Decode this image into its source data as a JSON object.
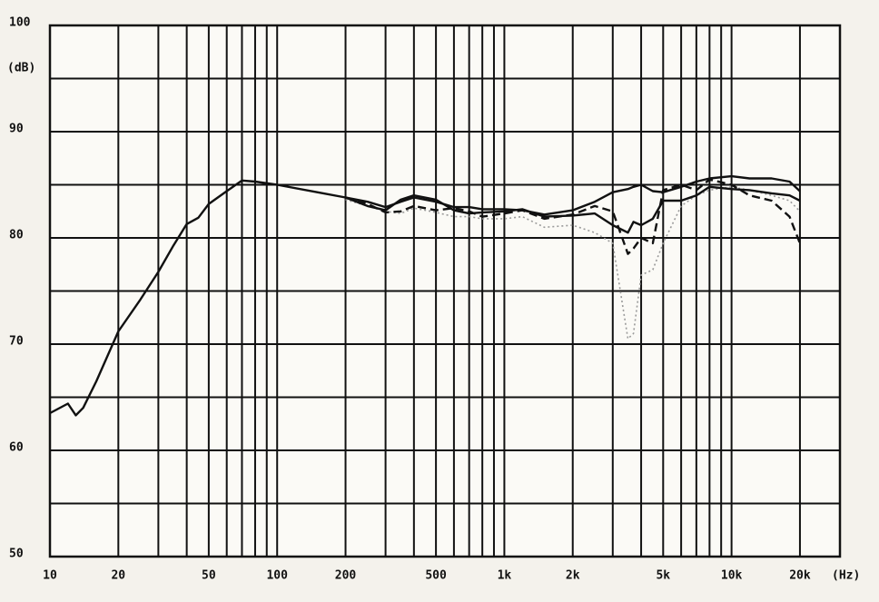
{
  "chart_data": {
    "type": "line",
    "ylabel": "(dB)",
    "xlabel": "(Hz)",
    "xscale": "log",
    "grid": true,
    "xlim": [
      10,
      30000
    ],
    "ylim": [
      50,
      100
    ],
    "xticks": [
      10,
      20,
      50,
      100,
      200,
      500,
      {
        "value": 1000,
        "label": "1k"
      },
      {
        "value": 2000,
        "label": "2k"
      },
      {
        "value": 5000,
        "label": "5k"
      },
      {
        "value": 10000,
        "label": "10k"
      },
      {
        "value": 20000,
        "label": "20k"
      }
    ],
    "x_minor_ticks": [
      30,
      40,
      60,
      70,
      80,
      90,
      300,
      400,
      600,
      700,
      800,
      900,
      3000,
      4000,
      6000,
      7000,
      8000,
      9000
    ],
    "yticks": [
      50,
      60,
      70,
      80,
      90,
      100
    ],
    "y_minor_ticks": [
      55,
      65,
      75,
      85,
      95
    ],
    "x": [
      10,
      12,
      13,
      14,
      16,
      20,
      25,
      30,
      35,
      40,
      45,
      50,
      60,
      70,
      80,
      100,
      150,
      200,
      250,
      300,
      350,
      400,
      500,
      600,
      700,
      800,
      1000,
      1200,
      1500,
      2000,
      2500,
      3000,
      3500,
      3700,
      4000,
      4500,
      5000,
      6000,
      7000,
      8000,
      10000,
      12000,
      15000,
      18000,
      20000
    ],
    "series": [
      {
        "color": "#111111",
        "dash": "solid",
        "values": [
          63.5,
          64.4,
          63.3,
          64.0,
          66.5,
          71.2,
          74.2,
          76.8,
          79.3,
          81.3,
          81.9,
          83.2,
          84.4,
          85.4,
          85.3,
          85.0,
          84.3,
          83.8,
          83.4,
          82.9,
          83.4,
          83.8,
          83.4,
          82.9,
          82.9,
          82.7,
          82.7,
          82.6,
          82.2,
          82.6,
          83.4,
          84.3,
          84.6,
          84.8,
          85.0,
          84.4,
          84.3,
          84.8,
          85.3,
          85.6,
          85.8,
          85.6,
          85.6,
          85.3,
          84.4
        ]
      },
      {
        "color": "#111111",
        "dash": "solid",
        "values": [
          null,
          null,
          null,
          null,
          null,
          null,
          null,
          null,
          null,
          null,
          null,
          null,
          null,
          null,
          null,
          null,
          null,
          83.8,
          83.0,
          82.6,
          83.6,
          84.0,
          83.6,
          82.6,
          82.3,
          82.4,
          82.5,
          82.7,
          82.0,
          82.1,
          82.3,
          81.2,
          80.5,
          81.5,
          81.2,
          81.8,
          83.5,
          83.5,
          84.0,
          84.8,
          84.6,
          84.5,
          84.2,
          84.0,
          83.5
        ]
      },
      {
        "color": "#111111",
        "dash": "dashed",
        "values": [
          null,
          null,
          null,
          null,
          null,
          null,
          null,
          null,
          null,
          null,
          null,
          null,
          null,
          null,
          null,
          null,
          null,
          83.8,
          83.2,
          82.4,
          82.5,
          83.0,
          82.6,
          82.8,
          82.5,
          82.0,
          82.3,
          82.6,
          81.8,
          82.2,
          83.0,
          82.5,
          78.5,
          79.0,
          80.0,
          79.5,
          84.5,
          85.0,
          84.5,
          85.5,
          85.0,
          84.0,
          83.5,
          82.0,
          79.5
        ]
      },
      {
        "color": "#9a9a9a",
        "dash": "dotted",
        "values": [
          null,
          null,
          null,
          null,
          null,
          null,
          null,
          null,
          null,
          null,
          null,
          null,
          null,
          null,
          null,
          null,
          null,
          83.6,
          83.0,
          82.5,
          82.3,
          82.8,
          82.4,
          82.0,
          82.0,
          81.8,
          81.8,
          82.0,
          81.0,
          81.2,
          80.5,
          79.5,
          70.5,
          71.0,
          76.5,
          77.0,
          79.5,
          83.0,
          84.0,
          84.5,
          84.8,
          84.5,
          84.0,
          83.5,
          82.5
        ]
      }
    ]
  }
}
